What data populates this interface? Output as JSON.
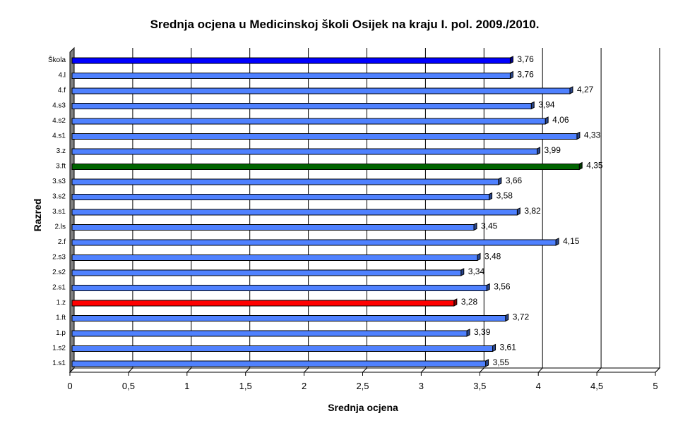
{
  "chart_data": {
    "type": "bar",
    "orientation": "horizontal",
    "title": "Srednja ocjena u Medicinskoj školi Osijek na kraju I. pol. 2009./2010.",
    "xlabel": "Srednja ocjena",
    "ylabel": "Razred",
    "xlim": [
      0,
      5
    ],
    "x_ticks": [
      "0",
      "0,5",
      "1",
      "1,5",
      "2",
      "2,5",
      "3",
      "3,5",
      "4",
      "4,5",
      "5"
    ],
    "x_tick_values": [
      0,
      0.5,
      1,
      1.5,
      2,
      2.5,
      3,
      3.5,
      4,
      4.5,
      5
    ],
    "grid": "vertical",
    "categories": [
      "Škola",
      "4.l",
      "4.f",
      "4.s3",
      "4.s2",
      "4.s1",
      "3.z",
      "3.ft",
      "3.s3",
      "3.s2",
      "3.s1",
      "2.ls",
      "2.f",
      "2.s3",
      "2.s2",
      "2.s1",
      "1.z",
      "1.ft",
      "1.p",
      "1.s2",
      "1.s1"
    ],
    "values": [
      3.76,
      3.76,
      4.27,
      3.94,
      4.06,
      4.33,
      3.99,
      4.35,
      3.66,
      3.58,
      3.82,
      3.45,
      4.15,
      3.48,
      3.34,
      3.56,
      3.28,
      3.72,
      3.39,
      3.61,
      3.55
    ],
    "value_labels": [
      "3,76",
      "3,76",
      "4,27",
      "3,94",
      "4,06",
      "4,33",
      "3,99",
      "4,35",
      "3,66",
      "3,58",
      "3,82",
      "3,45",
      "4,15",
      "3,48",
      "3,34",
      "3,56",
      "3,28",
      "3,72",
      "3,39",
      "3,61",
      "3,55"
    ],
    "bar_colors": [
      "#0000ff",
      "#4f81ff",
      "#4f81ff",
      "#4f81ff",
      "#4f81ff",
      "#4f81ff",
      "#4f81ff",
      "#006400",
      "#4f81ff",
      "#4f81ff",
      "#4f81ff",
      "#4f81ff",
      "#4f81ff",
      "#4f81ff",
      "#4f81ff",
      "#4f81ff",
      "#ff0000",
      "#4f81ff",
      "#4f81ff",
      "#4f81ff",
      "#4f81ff"
    ]
  }
}
